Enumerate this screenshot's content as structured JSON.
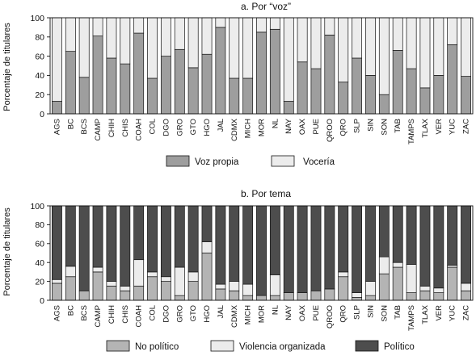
{
  "colors": {
    "voz_propia": "#9e9e9e",
    "voceria": "#ececec",
    "no_politico": "#b4b4b4",
    "violencia": "#ececec",
    "politico": "#4d4d4d",
    "stroke": "#111111"
  },
  "chart_data": [
    {
      "type": "bar",
      "stacked": true,
      "title": "a. Por “voz”",
      "ylabel": "Porcentaje de titulares",
      "xlabel": "",
      "ylim": [
        0,
        100
      ],
      "yticks": [
        0,
        20,
        40,
        60,
        80,
        100
      ],
      "legend_position": "bottom",
      "categories": [
        "AGS",
        "BC",
        "BCS",
        "CAMP",
        "CHIH",
        "CHIS",
        "COAH",
        "COL",
        "DGO",
        "GRO",
        "GTO",
        "HGO",
        "JAL",
        "CDMX",
        "MICH",
        "MOR",
        "NL",
        "NAY",
        "OAX",
        "PUE",
        "QROO",
        "QRO",
        "SLP",
        "SIN",
        "SON",
        "TAB",
        "TAMPS",
        "TLAX",
        "VER",
        "YUC",
        "ZAC"
      ],
      "series": [
        {
          "name": "Voz propia",
          "values": [
            13,
            65,
            38,
            81,
            58,
            52,
            84,
            37,
            60,
            67,
            48,
            62,
            90,
            37,
            37,
            85,
            88,
            13,
            54,
            47,
            82,
            33,
            58,
            40,
            20,
            66,
            47,
            27,
            40,
            72,
            39
          ]
        },
        {
          "name": "Vocería",
          "values": [
            87,
            35,
            62,
            19,
            42,
            48,
            16,
            63,
            40,
            33,
            52,
            38,
            10,
            63,
            63,
            15,
            12,
            87,
            46,
            53,
            18,
            67,
            42,
            60,
            80,
            34,
            53,
            73,
            60,
            28,
            61
          ]
        }
      ]
    },
    {
      "type": "bar",
      "stacked": true,
      "title": "b. Por tema",
      "ylabel": "Porcentaje de titulares",
      "xlabel": "",
      "ylim": [
        0,
        100
      ],
      "yticks": [
        0,
        20,
        40,
        60,
        80,
        100
      ],
      "legend_position": "bottom",
      "categories": [
        "AGS",
        "BC",
        "BCS",
        "CAMP",
        "CHIH",
        "CHIS",
        "COAH",
        "COL",
        "DGO",
        "GRO",
        "GTO",
        "HGO",
        "JAL",
        "CDMX",
        "MICH",
        "MOR",
        "NL",
        "NAY",
        "OAX",
        "PUE",
        "QROO",
        "QRO",
        "SLP",
        "SIN",
        "SON",
        "TAB",
        "TAMPS",
        "TLAX",
        "VER",
        "YUC",
        "ZAC"
      ],
      "series": [
        {
          "name": "No político",
          "values": [
            18,
            25,
            10,
            30,
            15,
            10,
            15,
            25,
            20,
            5,
            20,
            50,
            12,
            10,
            5,
            5,
            5,
            8,
            8,
            10,
            12,
            25,
            3,
            5,
            28,
            35,
            8,
            10,
            8,
            35,
            10
          ]
        },
        {
          "name": "Violencia organizada",
          "values": [
            4,
            11,
            0,
            5,
            5,
            5,
            28,
            5,
            5,
            30,
            10,
            12,
            5,
            10,
            12,
            0,
            22,
            0,
            0,
            0,
            0,
            5,
            5,
            15,
            18,
            5,
            30,
            5,
            5,
            2,
            8
          ]
        },
        {
          "name": "Político",
          "values": [
            78,
            64,
            90,
            65,
            80,
            85,
            57,
            70,
            75,
            65,
            70,
            38,
            83,
            80,
            83,
            95,
            73,
            92,
            92,
            90,
            88,
            70,
            92,
            80,
            54,
            60,
            62,
            85,
            87,
            63,
            82
          ]
        }
      ]
    }
  ]
}
